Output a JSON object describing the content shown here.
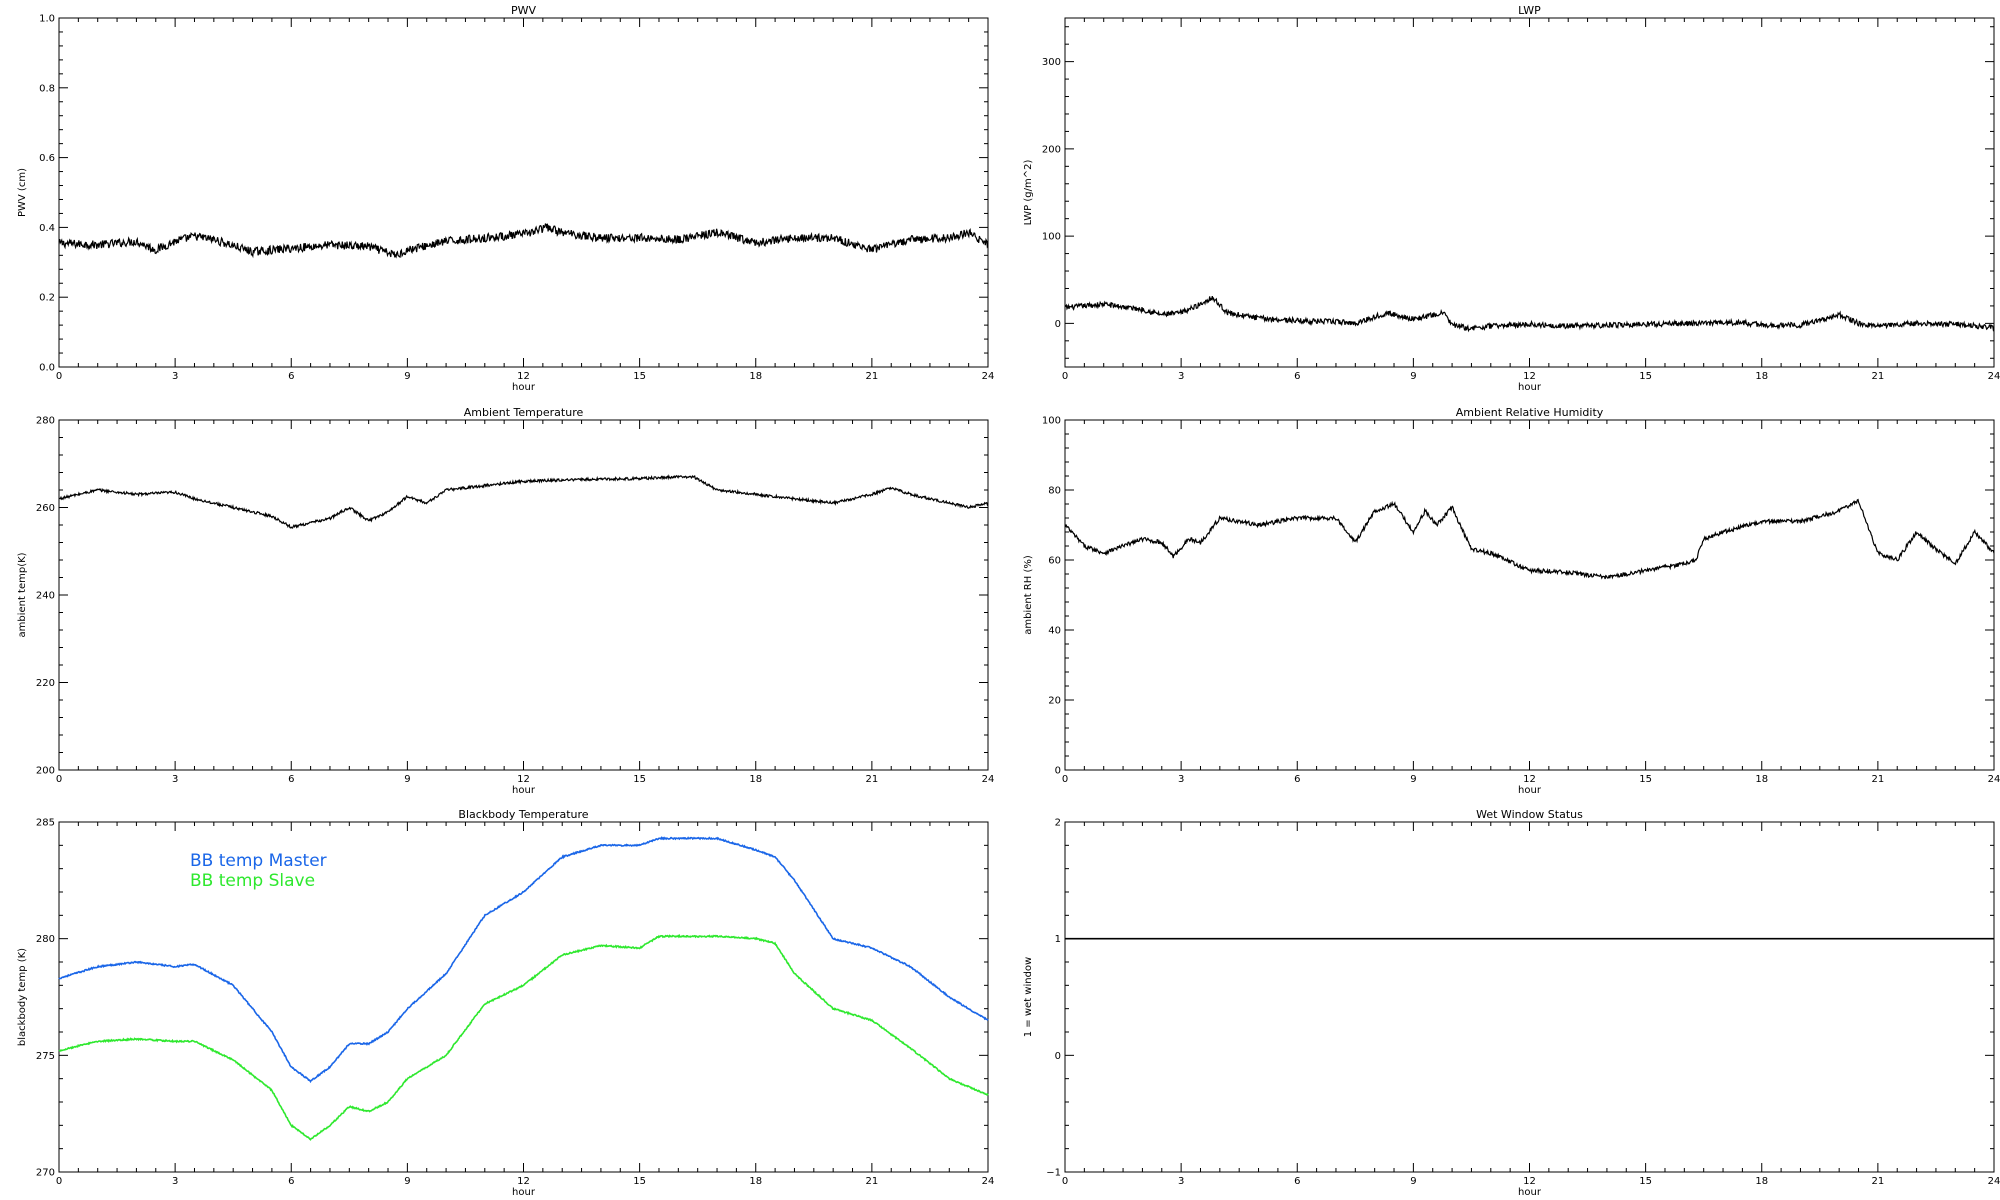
{
  "chart_data": [
    {
      "id": "pwv",
      "type": "line",
      "title": "PWV",
      "xlabel": "hour",
      "ylabel": "PWV (cm)",
      "xlim": [
        0,
        24
      ],
      "ylim": [
        0.0,
        1.0
      ],
      "xticks": [
        "0",
        "3",
        "6",
        "9",
        "12",
        "15",
        "18",
        "21",
        "24"
      ],
      "yticks": [
        "0.0",
        "0.2",
        "0.4",
        "0.6",
        "0.8",
        "1.0"
      ],
      "series": [
        {
          "name": "",
          "color": "#000000",
          "noise": 0.012,
          "x": [
            0,
            1,
            2,
            2.5,
            3,
            3.5,
            4,
            5,
            6,
            7,
            8,
            8.7,
            9,
            10,
            11,
            12,
            12.6,
            13,
            14,
            15,
            16,
            17,
            18,
            19,
            20,
            21,
            22,
            23,
            23.5,
            24
          ],
          "y": [
            0.355,
            0.35,
            0.36,
            0.335,
            0.36,
            0.375,
            0.365,
            0.33,
            0.34,
            0.35,
            0.345,
            0.32,
            0.335,
            0.36,
            0.37,
            0.38,
            0.4,
            0.385,
            0.37,
            0.37,
            0.365,
            0.385,
            0.355,
            0.37,
            0.37,
            0.335,
            0.365,
            0.37,
            0.385,
            0.35
          ]
        }
      ]
    },
    {
      "id": "lwp",
      "type": "line",
      "title": "LWP",
      "xlabel": "hour",
      "ylabel": "LWP (g/m^2)",
      "xlim": [
        0,
        24
      ],
      "ylim": [
        -50,
        350
      ],
      "xticks": [
        "0",
        "3",
        "6",
        "9",
        "12",
        "15",
        "18",
        "21",
        "24"
      ],
      "yticks": [
        "0",
        "100",
        "200",
        "300"
      ],
      "series": [
        {
          "name": "",
          "color": "#000000",
          "noise": 3,
          "x": [
            0,
            1,
            2,
            2.5,
            3,
            3.5,
            3.8,
            4.2,
            5,
            6,
            7,
            7.5,
            8.3,
            9,
            9.8,
            10,
            10.5,
            11,
            12,
            13,
            15,
            17.5,
            18,
            19,
            20,
            20.5,
            21,
            22,
            23,
            24
          ],
          "y": [
            18,
            22,
            16,
            10,
            12,
            22,
            30,
            12,
            6,
            3,
            2,
            0,
            12,
            5,
            12,
            -2,
            -6,
            -3,
            -1,
            -3,
            -1,
            1,
            -2,
            -2,
            10,
            0,
            -3,
            0,
            -1,
            -5
          ]
        }
      ]
    },
    {
      "id": "ambient-temp",
      "type": "line",
      "title": "Ambient Temperature",
      "xlabel": "hour",
      "ylabel": "ambient temp(K)",
      "xlim": [
        0,
        24
      ],
      "ylim": [
        200,
        280
      ],
      "xticks": [
        "0",
        "3",
        "6",
        "9",
        "12",
        "15",
        "18",
        "21",
        "24"
      ],
      "yticks": [
        "200",
        "220",
        "240",
        "260",
        "280"
      ],
      "series": [
        {
          "name": "",
          "color": "#000000",
          "noise": 0.3,
          "x": [
            0,
            1,
            2,
            3,
            3.5,
            4.5,
            5.5,
            6,
            7,
            7.5,
            8,
            8.5,
            9,
            9.5,
            10,
            11,
            12,
            13,
            14,
            15,
            16,
            16.4,
            17,
            18,
            19,
            20,
            21,
            21.5,
            22,
            23,
            23.5,
            24
          ],
          "y": [
            262,
            264,
            263,
            263.5,
            262,
            260,
            258,
            255.5,
            257.5,
            260,
            257,
            259,
            262.5,
            261,
            264,
            265,
            266,
            266.3,
            266.5,
            266.6,
            267,
            267,
            264,
            263,
            262,
            261,
            263,
            264.5,
            263,
            261,
            260,
            261
          ]
        }
      ]
    },
    {
      "id": "ambient-rh",
      "type": "line",
      "title": "Ambient Relative Humidity",
      "xlabel": "hour",
      "ylabel": "ambient RH (%)",
      "xlim": [
        0,
        24
      ],
      "ylim": [
        0,
        100
      ],
      "xticks": [
        "0",
        "3",
        "6",
        "9",
        "12",
        "15",
        "18",
        "21",
        "24"
      ],
      "yticks": [
        "0",
        "20",
        "40",
        "60",
        "80",
        "100"
      ],
      "series": [
        {
          "name": "",
          "color": "#000000",
          "noise": 0.6,
          "x": [
            0,
            0.5,
            1,
            2,
            2.5,
            2.8,
            3.2,
            3.5,
            4,
            5,
            6,
            7,
            7.5,
            8,
            8.5,
            9,
            9.3,
            9.6,
            10,
            10.5,
            11,
            12,
            13,
            14,
            15,
            16,
            16.3,
            16.5,
            17,
            18,
            19,
            20,
            20.5,
            21,
            21.5,
            22,
            22.5,
            23,
            23.5,
            24
          ],
          "y": [
            70,
            64,
            62,
            66,
            65,
            61,
            66,
            65,
            72,
            70,
            72,
            72,
            65,
            74,
            76,
            68,
            74,
            70,
            75,
            63,
            62,
            57,
            56.5,
            55,
            57,
            59,
            60,
            66,
            68,
            71,
            71,
            74,
            77,
            62,
            60,
            68,
            63,
            59,
            68,
            62
          ]
        }
      ]
    },
    {
      "id": "bb-temp",
      "type": "line",
      "title": "Blackbody Temperature",
      "xlabel": "hour",
      "ylabel": "blackbody temp (K)",
      "xlim": [
        0,
        24
      ],
      "ylim": [
        270,
        285
      ],
      "xticks": [
        "0",
        "3",
        "6",
        "9",
        "12",
        "15",
        "18",
        "21",
        "24"
      ],
      "yticks": [
        "270",
        "275",
        "280",
        "285"
      ],
      "legend_position": "top-left",
      "series": [
        {
          "name": "BB temp Master",
          "color": "#1a66e8",
          "noise": 0.03,
          "x": [
            0,
            1,
            2,
            3,
            3.5,
            4.5,
            5.5,
            6,
            6.5,
            7,
            7.5,
            8,
            8.5,
            9,
            10,
            11,
            12,
            13,
            14,
            15,
            15.5,
            16,
            17,
            18,
            18.5,
            19,
            20,
            21,
            22,
            23,
            24
          ],
          "y": [
            278.3,
            278.8,
            279.0,
            278.8,
            278.9,
            278.0,
            276.0,
            274.5,
            273.9,
            274.5,
            275.5,
            275.5,
            276.0,
            277.0,
            278.5,
            281.0,
            282.0,
            283.5,
            284.0,
            284.0,
            284.3,
            284.3,
            284.3,
            283.8,
            283.5,
            282.5,
            280.0,
            279.6,
            278.8,
            277.5,
            276.5
          ]
        },
        {
          "name": "BB temp Slave",
          "color": "#2ee82e",
          "noise": 0.03,
          "x": [
            0,
            1,
            2,
            3,
            3.5,
            4.5,
            5.5,
            6,
            6.5,
            7,
            7.5,
            8,
            8.5,
            9,
            10,
            11,
            12,
            13,
            14,
            15,
            15.5,
            16,
            17,
            18,
            18.5,
            19,
            20,
            21,
            22,
            23,
            24
          ],
          "y": [
            275.2,
            275.6,
            275.7,
            275.6,
            275.6,
            274.8,
            273.5,
            272.0,
            271.4,
            272.0,
            272.8,
            272.6,
            273.0,
            274.0,
            275.0,
            277.2,
            278.0,
            279.3,
            279.7,
            279.6,
            280.1,
            280.1,
            280.1,
            280.0,
            279.8,
            278.5,
            277.0,
            276.5,
            275.3,
            274.0,
            273.3
          ]
        }
      ]
    },
    {
      "id": "wet-window",
      "type": "line",
      "title": "Wet Window Status",
      "xlabel": "hour",
      "ylabel": "1 = wet window",
      "xlim": [
        0,
        24
      ],
      "ylim": [
        -1,
        2
      ],
      "xticks": [
        "0",
        "3",
        "6",
        "9",
        "12",
        "15",
        "18",
        "21",
        "24"
      ],
      "yticks": [
        "−1",
        "0",
        "1",
        "2"
      ],
      "series": [
        {
          "name": "",
          "color": "#000000",
          "noise": 0,
          "x": [
            0,
            24
          ],
          "y": [
            1,
            1
          ]
        }
      ]
    }
  ]
}
